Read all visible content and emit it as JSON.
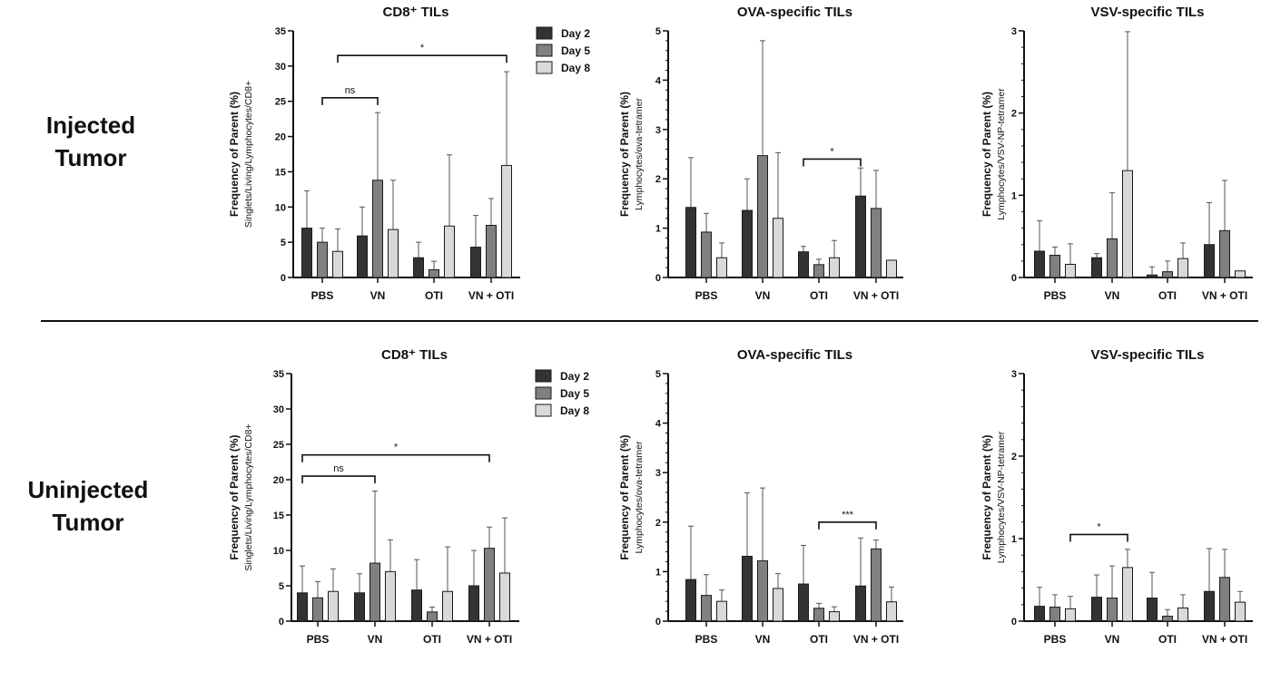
{
  "rows": [
    {
      "label_line1": "Injected",
      "label_line2": "Tumor"
    },
    {
      "label_line1": "Uninjected",
      "label_line2": "Tumor"
    }
  ],
  "colors": {
    "Day 2": "#333333",
    "Day 5": "#808080",
    "Day 8": "#d9d9d9",
    "outline": "#1a1a1a"
  },
  "chart_data": [
    {
      "type": "bar",
      "row": 0,
      "title": "CD8⁺ TILs",
      "ylabel": "Frequency of Parent (%)",
      "ylabel_sub": "Singlets/Living/Lymphocytes/CD8+",
      "ylim": [
        0,
        35
      ],
      "yticks": [
        0,
        5,
        10,
        15,
        20,
        25,
        30,
        35
      ],
      "yticks_minor": [],
      "categories": [
        "PBS",
        "VN",
        "OTI",
        "VN + OTI"
      ],
      "legend": "top-right",
      "series": [
        {
          "name": "Day 2",
          "values": [
            7.0,
            5.9,
            2.8,
            4.3
          ],
          "error_top": [
            12.3,
            10.0,
            5.0,
            8.8
          ]
        },
        {
          "name": "Day 5",
          "values": [
            5.0,
            13.8,
            1.1,
            7.4
          ],
          "error_top": [
            7.0,
            23.4,
            2.3,
            11.2
          ]
        },
        {
          "name": "Day 8",
          "values": [
            3.7,
            6.8,
            7.3,
            15.9
          ],
          "error_top": [
            6.9,
            13.8,
            17.4,
            29.2
          ]
        }
      ],
      "significance": [
        {
          "from": [
            "PBS",
            "Day 5"
          ],
          "to": [
            "VN",
            "Day 5"
          ],
          "y": 25.5,
          "label": "ns"
        },
        {
          "from": [
            "PBS",
            "Day 8"
          ],
          "to": [
            "VN + OTI",
            "Day 8"
          ],
          "y": 31.5,
          "label": "*"
        }
      ]
    },
    {
      "type": "bar",
      "row": 0,
      "title": "OVA-specific TILs",
      "ylabel": "Frequency of Parent (%)",
      "ylabel_sub": "Lymphocytes/ova-tetramer",
      "ylim": [
        0,
        5
      ],
      "yticks": [
        0,
        1,
        2,
        3,
        4,
        5
      ],
      "yticks_minor_step": 0.2,
      "categories": [
        "PBS",
        "VN",
        "OTI",
        "VN + OTI"
      ],
      "series": [
        {
          "name": "Day 2",
          "values": [
            1.42,
            1.36,
            0.52,
            1.65
          ],
          "error_top": [
            2.43,
            2.0,
            0.63,
            2.22
          ]
        },
        {
          "name": "Day 5",
          "values": [
            0.92,
            2.47,
            0.26,
            1.4
          ],
          "error_top": [
            1.3,
            4.8,
            0.37,
            2.17
          ]
        },
        {
          "name": "Day 8",
          "values": [
            0.4,
            1.2,
            0.4,
            0.35
          ],
          "error_top": [
            0.7,
            2.53,
            0.75,
            null
          ]
        }
      ],
      "significance": [
        {
          "from": [
            "OTI",
            "Day 2"
          ],
          "to": [
            "VN + OTI",
            "Day 2"
          ],
          "y": 2.4,
          "label": "*"
        }
      ]
    },
    {
      "type": "bar",
      "row": 0,
      "title": "VSV-specific TILs",
      "ylabel": "Frequency of Parent (%)",
      "ylabel_sub": "Lymphocytes/VSV-NP-tetramer",
      "ylim": [
        0,
        3
      ],
      "yticks": [
        0,
        1,
        2,
        3
      ],
      "yticks_minor_step": 0.2,
      "categories": [
        "PBS",
        "VN",
        "OTI",
        "VN + OTI"
      ],
      "series": [
        {
          "name": "Day 2",
          "values": [
            0.32,
            0.24,
            0.03,
            0.4
          ],
          "error_top": [
            0.69,
            0.29,
            0.13,
            0.91
          ]
        },
        {
          "name": "Day 5",
          "values": [
            0.27,
            0.47,
            0.07,
            0.57
          ],
          "error_top": [
            0.37,
            1.03,
            0.2,
            1.18
          ]
        },
        {
          "name": "Day 8",
          "values": [
            0.16,
            1.3,
            0.23,
            0.08
          ],
          "error_top": [
            0.41,
            2.99,
            0.42,
            null
          ]
        }
      ],
      "significance": []
    },
    {
      "type": "bar",
      "row": 1,
      "title": "CD8⁺ TILs",
      "ylabel": "Frequency of Parent (%)",
      "ylabel_sub": "Singlets/Living/Lymphocytes/CD8+",
      "ylim": [
        0,
        35
      ],
      "yticks": [
        0,
        5,
        10,
        15,
        20,
        25,
        30,
        35
      ],
      "categories": [
        "PBS",
        "VN",
        "OTI",
        "VN + OTI"
      ],
      "legend": "top-right",
      "series": [
        {
          "name": "Day 2",
          "values": [
            4.0,
            4.0,
            4.4,
            5.0
          ],
          "error_top": [
            7.8,
            6.7,
            8.7,
            10.0
          ]
        },
        {
          "name": "Day 5",
          "values": [
            3.3,
            8.2,
            1.3,
            10.3
          ],
          "error_top": [
            5.6,
            18.4,
            2.0,
            13.3
          ]
        },
        {
          "name": "Day 8",
          "values": [
            4.2,
            7.0,
            4.2,
            6.8
          ],
          "error_top": [
            7.4,
            11.5,
            10.5,
            14.6
          ]
        }
      ],
      "significance": [
        {
          "from": [
            "PBS",
            "Day 2"
          ],
          "to": [
            "VN",
            "Day 5"
          ],
          "y": 20.5,
          "label": "ns"
        },
        {
          "from": [
            "PBS",
            "Day 2"
          ],
          "to": [
            "VN + OTI",
            "Day 5"
          ],
          "y": 23.5,
          "label": "*"
        }
      ]
    },
    {
      "type": "bar",
      "row": 1,
      "title": "OVA-specific TILs",
      "ylabel": "Frequency of Parent (%)",
      "ylabel_sub": "Lymphocytes/ova-tetramer",
      "ylim": [
        0,
        5
      ],
      "yticks": [
        0,
        1,
        2,
        3,
        4,
        5
      ],
      "yticks_minor_step": 0.2,
      "categories": [
        "PBS",
        "VN",
        "OTI",
        "VN + OTI"
      ],
      "series": [
        {
          "name": "Day 2",
          "values": [
            0.84,
            1.31,
            0.75,
            0.71
          ],
          "error_top": [
            1.92,
            2.59,
            1.53,
            1.68
          ]
        },
        {
          "name": "Day 5",
          "values": [
            0.52,
            1.22,
            0.26,
            1.46
          ],
          "error_top": [
            0.94,
            2.69,
            0.36,
            1.64
          ]
        },
        {
          "name": "Day 8",
          "values": [
            0.4,
            0.66,
            0.19,
            0.39
          ],
          "error_top": [
            0.63,
            0.96,
            0.29,
            0.69
          ]
        }
      ],
      "significance": [
        {
          "from": [
            "OTI",
            "Day 5"
          ],
          "to": [
            "VN + OTI",
            "Day 5"
          ],
          "y": 2.0,
          "label": "***"
        }
      ]
    },
    {
      "type": "bar",
      "row": 1,
      "title": "VSV-specific TILs",
      "ylabel": "Frequency of Parent (%)",
      "ylabel_sub": "Lymphocytes/VSV-NP-tetramer",
      "ylim": [
        0,
        3
      ],
      "yticks": [
        0,
        1,
        2,
        3
      ],
      "yticks_minor_step": 0.2,
      "categories": [
        "PBS",
        "VN",
        "OTI",
        "VN + OTI"
      ],
      "series": [
        {
          "name": "Day 2",
          "values": [
            0.18,
            0.29,
            0.28,
            0.36
          ],
          "error_top": [
            0.41,
            0.56,
            0.59,
            0.88
          ]
        },
        {
          "name": "Day 5",
          "values": [
            0.17,
            0.28,
            0.06,
            0.53
          ],
          "error_top": [
            0.32,
            0.67,
            0.14,
            0.87
          ]
        },
        {
          "name": "Day 8",
          "values": [
            0.15,
            0.65,
            0.16,
            0.23
          ],
          "error_top": [
            0.3,
            0.87,
            0.32,
            0.36
          ]
        }
      ],
      "significance": [
        {
          "from": [
            "PBS",
            "Day 8"
          ],
          "to": [
            "VN",
            "Day 8"
          ],
          "y": 1.05,
          "label": "*"
        }
      ]
    }
  ]
}
